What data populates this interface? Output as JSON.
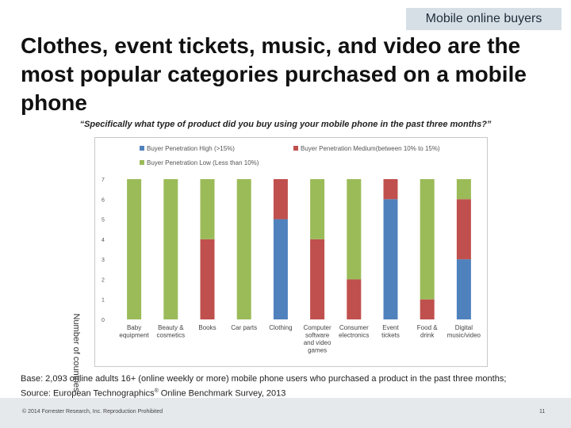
{
  "header": {
    "badge": "Mobile online buyers"
  },
  "title": "Clothes, event tickets, music, and video are the most popular categories purchased on a mobile phone",
  "question": "“Specifically what type of product did you buy using your mobile phone in the  past three months?”",
  "base_note": {
    "line1": "Base: 2,093 online adults 16+ (online weekly or more) mobile phone users who purchased a product in the past three months;",
    "line2_prefix": "Source: European Technographics",
    "line2_sup": "®",
    "line2_suffix": " Online Benchmark Survey, 2013"
  },
  "footer": {
    "copyright": "© 2014 Forrester Research, Inc. Reproduction Prohibited",
    "page_number": "11"
  },
  "chart_data": {
    "type": "bar",
    "stacked": true,
    "ylabel": "Number of countries",
    "ylim": [
      0,
      7
    ],
    "yticks": [
      0,
      1,
      2,
      3,
      4,
      5,
      6,
      7
    ],
    "grid": false,
    "legend_position": "top",
    "categories": [
      [
        "Baby",
        "equipment"
      ],
      [
        "Beauty &",
        "cosmetics"
      ],
      [
        "Books"
      ],
      [
        "Car parts"
      ],
      [
        "Clothing"
      ],
      [
        "Computer",
        "software",
        "and video",
        "games"
      ],
      [
        "Consumer",
        "electronics"
      ],
      [
        "Event",
        "tickets"
      ],
      [
        "Food &",
        "drink"
      ],
      [
        "Digital",
        "music/video"
      ]
    ],
    "series": [
      {
        "name": "Buyer Penetration High (>15%)",
        "color": "#4f81bd",
        "values": [
          0,
          0,
          0,
          0,
          5,
          0,
          0,
          6,
          0,
          3
        ]
      },
      {
        "name": "Buyer Penetration Medium(between 10% to 15%)",
        "color": "#c0504d",
        "values": [
          0,
          0,
          4,
          0,
          2,
          4,
          2,
          1,
          1,
          3
        ]
      },
      {
        "name": "Buyer Penetration Low (Less than 10%)",
        "color": "#9bbb59",
        "values": [
          7,
          7,
          3,
          7,
          0,
          3,
          5,
          0,
          6,
          1
        ]
      }
    ]
  }
}
